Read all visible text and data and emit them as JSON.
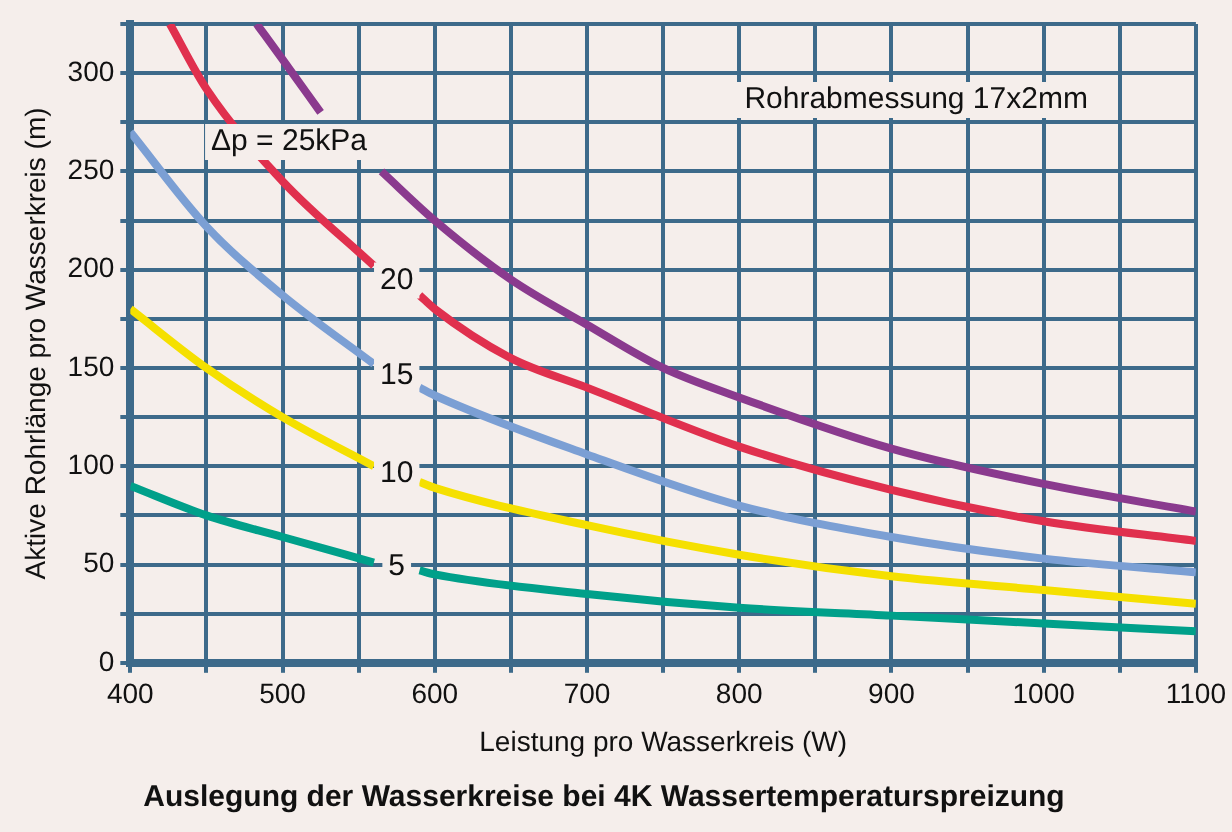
{
  "chart_data": {
    "type": "line",
    "title": "Auslegung der Wasserkreise bei 4K Wassertemperaturspreizung",
    "xlabel": "Leistung pro Wasserkreis (W)",
    "ylabel": "Aktive Rohrlänge pro Wasserkreis (m)",
    "xlim": [
      400,
      1100
    ],
    "xticks": [
      400,
      {
        "value": 450,
        "label": null
      },
      500,
      {
        "value": 550,
        "label": null
      },
      600,
      {
        "value": 650,
        "label": null
      },
      700,
      {
        "value": 750,
        "label": null
      },
      800,
      {
        "value": 850,
        "label": null
      },
      900,
      {
        "value": 950,
        "label": null
      },
      1000,
      {
        "value": 1050,
        "label": null
      },
      1100
    ],
    "ylim": [
      0,
      325
    ],
    "yticks": [
      0,
      {
        "value": 25,
        "label": null
      },
      50,
      {
        "value": 75,
        "label": null
      },
      100,
      {
        "value": 125,
        "label": null
      },
      150,
      {
        "value": 175,
        "label": null
      },
      200,
      {
        "value": 225,
        "label": null
      },
      250,
      {
        "value": 275,
        "label": null
      },
      300,
      {
        "value": 325,
        "label": null
      }
    ],
    "grid": true,
    "legend": false,
    "marker": "none",
    "line_style": "solid",
    "series": [
      {
        "name": "5",
        "color": "#00a08a",
        "x": [
          400,
          450,
          500,
          560,
          575,
          590,
          600,
          700,
          800,
          900,
          1000,
          1100
        ],
        "values": [
          90,
          75,
          64,
          51,
          null,
          47,
          45,
          35,
          28,
          24,
          20,
          16
        ]
      },
      {
        "name": "10",
        "color": "#f5e000",
        "x": [
          400,
          450,
          500,
          560,
          575,
          590,
          600,
          700,
          800,
          900,
          1000,
          1100
        ],
        "values": [
          180,
          150,
          125,
          100,
          null,
          92,
          89,
          70,
          55,
          44,
          37,
          30
        ]
      },
      {
        "name": "15",
        "color": "#7b9fd4",
        "x": [
          400,
          450,
          500,
          560,
          575,
          590,
          600,
          700,
          800,
          900,
          1000,
          1100
        ],
        "values": [
          270,
          222,
          187,
          152,
          null,
          140,
          136,
          106,
          80,
          64,
          53,
          46
        ]
      },
      {
        "name": "20",
        "color": "#e0304e",
        "x": [
          426,
          450,
          500,
          560,
          575,
          590,
          600,
          650,
          700,
          800,
          900,
          1000,
          1100
        ],
        "values": [
          325,
          292,
          245,
          202,
          null,
          187,
          180,
          155,
          140,
          110,
          88,
          72,
          62
        ]
      },
      {
        "name": "Δp = 25kPa",
        "color": "#8a3a8e",
        "x": [
          483,
          500,
          525,
          545,
          565,
          600,
          650,
          700,
          750,
          800,
          900,
          1000,
          1100
        ],
        "values": [
          325,
          307,
          280,
          null,
          250,
          225,
          195,
          172,
          150,
          135,
          109,
          91,
          77
        ]
      }
    ],
    "annotations": [
      "Rohrabmessung 17x2mm"
    ]
  }
}
